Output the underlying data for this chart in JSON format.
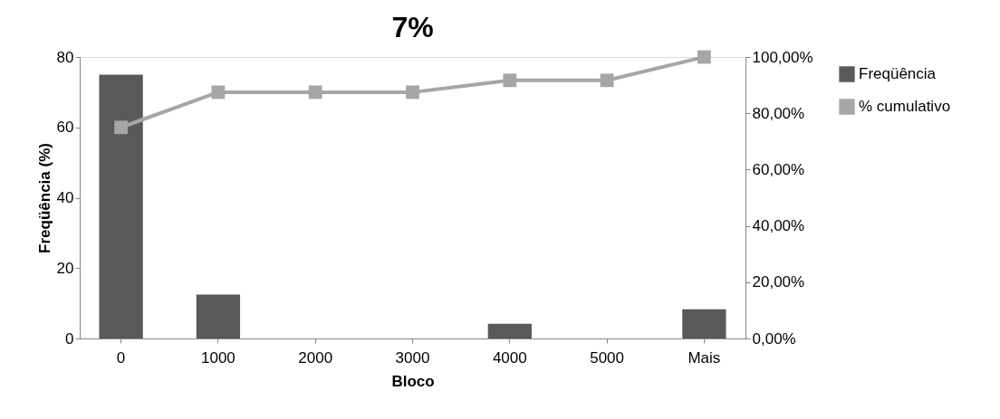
{
  "chart_data": {
    "type": "bar",
    "title": "7%",
    "xlabel": "Bloco",
    "ylabel": "Freqüência (%)",
    "categories": [
      "0",
      "1000",
      "2000",
      "3000",
      "4000",
      "5000",
      "Mais"
    ],
    "series": [
      {
        "name": "Freqüência",
        "color": "#595959",
        "values": [
          75,
          12.5,
          0,
          0,
          4.2,
          0,
          8.3
        ]
      },
      {
        "name": "% cumulativo",
        "type": "line",
        "axis": "y2",
        "color": "#a6a6a6",
        "marker": "square",
        "values": [
          75,
          87.5,
          87.5,
          87.5,
          91.7,
          91.7,
          100
        ]
      }
    ],
    "ylim": [
      0,
      80
    ],
    "yticks": [
      0,
      20,
      40,
      60,
      80
    ],
    "y2lim": [
      0,
      100
    ],
    "y2ticks": [
      {
        "value": 0,
        "label": "0,00%"
      },
      {
        "value": 20,
        "label": "20,00%"
      },
      {
        "value": 40,
        "label": "40,00%"
      },
      {
        "value": 60,
        "label": "60,00%"
      },
      {
        "value": 80,
        "label": "80,00%"
      },
      {
        "value": 100,
        "label": "100,00%"
      }
    ],
    "grid": false,
    "legend": "right"
  }
}
